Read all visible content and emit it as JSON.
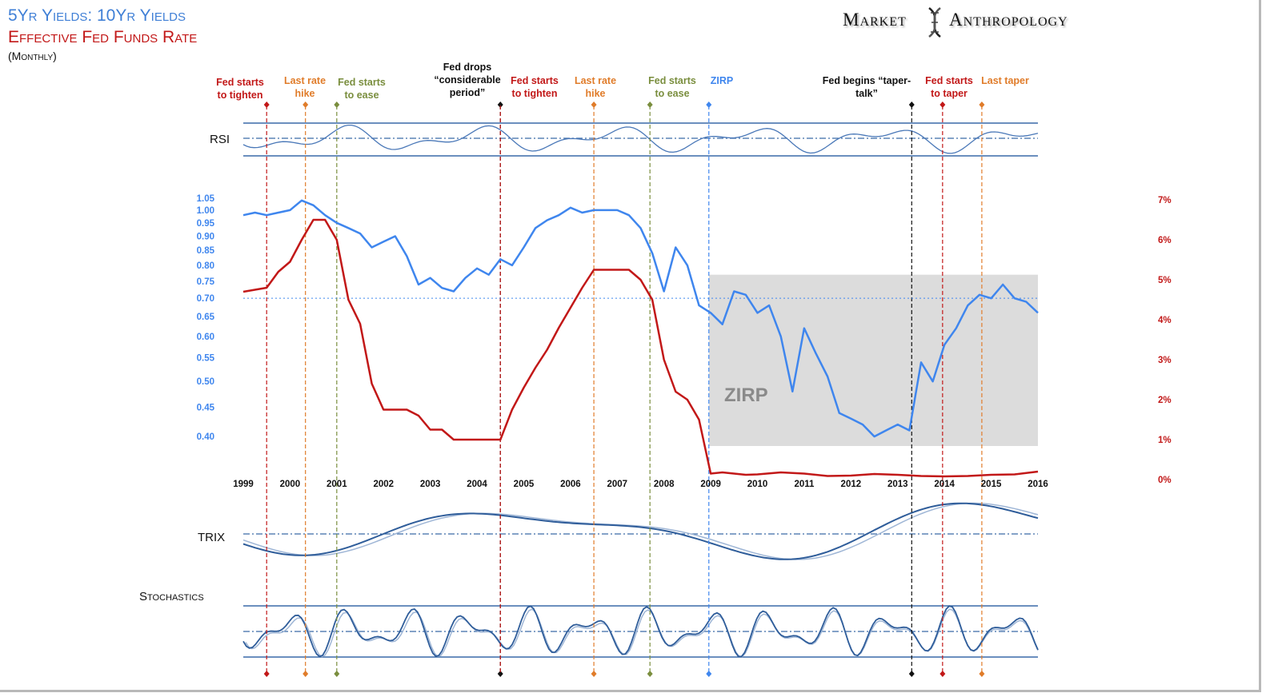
{
  "header": {
    "title1": "5Yr Yields: 10Yr Yields",
    "title2": "Effective Fed Funds Rate",
    "subtitle": "(Monthly)",
    "brand_left": "Market",
    "brand_right": "Anthropology"
  },
  "colors": {
    "ratio": "#3f86ee",
    "fed": "#c21818",
    "indicator": "#3a6aa8",
    "indicator_light": "#9fb6d6",
    "zirp_box": "#dcdcdc",
    "left_axis": "#3f86ee",
    "right_axis": "#c21818"
  },
  "panels": {
    "rsi_label": "RSI",
    "trix_label": "TRIX",
    "stoch_label": "Stochastics"
  },
  "zirp_box_label": "ZIRP",
  "events": [
    {
      "date": 1999.5,
      "label": [
        "Fed starts",
        "to tighten"
      ],
      "color": "#c21818"
    },
    {
      "date": 2000.33,
      "label": [
        "Last rate",
        "hike"
      ],
      "color": "#e07c2a"
    },
    {
      "date": 2001.0,
      "label": [
        "Fed starts",
        "to ease"
      ],
      "color": "#7a8e3e"
    },
    {
      "date": 2004.5,
      "label": [
        "Fed drops",
        "“considerable",
        "period”"
      ],
      "color": "#111111"
    },
    {
      "date": 2004.5,
      "label": [
        "Fed starts",
        "to tighten"
      ],
      "color": "#c21818"
    },
    {
      "date": 2006.5,
      "label": [
        "Last rate",
        "hike"
      ],
      "color": "#e07c2a"
    },
    {
      "date": 2007.7,
      "label": [
        "Fed starts",
        "to ease"
      ],
      "color": "#7a8e3e"
    },
    {
      "date": 2008.96,
      "label": [
        "ZIRP"
      ],
      "color": "#3f86ee"
    },
    {
      "date": 2013.3,
      "label": [
        "Fed begins “taper-",
        "talk”"
      ],
      "color": "#111111"
    },
    {
      "date": 2013.96,
      "label": [
        "Fed starts",
        "to taper"
      ],
      "color": "#c21818"
    },
    {
      "date": 2014.8,
      "label": [
        "Last taper"
      ],
      "color": "#e07c2a"
    }
  ],
  "chart_data": {
    "type": "line",
    "title": "5Yr Yields: 10Yr Yields / Effective Fed Funds Rate (Monthly)",
    "x_ticks": [
      "1999",
      "2000",
      "2001",
      "2002",
      "2003",
      "2004",
      "2005",
      "2006",
      "2007",
      "2008",
      "2009",
      "2010",
      "2011",
      "2012",
      "2013",
      "2014",
      "2015",
      "2016"
    ],
    "left_axis": {
      "ticks": [
        "1.05",
        "1.00",
        "0.95",
        "0.90",
        "0.85",
        "0.80",
        "0.75",
        "0.70",
        "0.65",
        "0.60",
        "0.55",
        "0.50",
        "0.45",
        "0.40"
      ],
      "ylim": [
        0.38,
        1.07
      ],
      "scale": "log"
    },
    "right_axis": {
      "ticks": [
        "7%",
        "6%",
        "5%",
        "4%",
        "3%",
        "2%",
        "1%",
        "0%"
      ],
      "ylim": [
        0,
        7
      ]
    },
    "reference_line": 0.7,
    "zirp_box": {
      "x": [
        2008.96,
        2016.0
      ],
      "y": [
        0.385,
        0.77
      ]
    },
    "series": [
      {
        "name": "5Yr Yields: 10Yr Yields",
        "axis": "left",
        "x": [
          1999.0,
          1999.25,
          1999.5,
          1999.75,
          2000.0,
          2000.25,
          2000.5,
          2000.75,
          2001.0,
          2001.25,
          2001.5,
          2001.75,
          2002.0,
          2002.25,
          2002.5,
          2002.75,
          2003.0,
          2003.25,
          2003.5,
          2003.75,
          2004.0,
          2004.25,
          2004.5,
          2004.75,
          2005.0,
          2005.25,
          2005.5,
          2005.75,
          2006.0,
          2006.25,
          2006.5,
          2006.75,
          2007.0,
          2007.25,
          2007.5,
          2007.75,
          2008.0,
          2008.25,
          2008.5,
          2008.75,
          2009.0,
          2009.25,
          2009.5,
          2009.75,
          2010.0,
          2010.25,
          2010.5,
          2010.75,
          2011.0,
          2011.25,
          2011.5,
          2011.75,
          2012.0,
          2012.25,
          2012.5,
          2012.75,
          2013.0,
          2013.25,
          2013.5,
          2013.75,
          2014.0,
          2014.25,
          2014.5,
          2014.75,
          2015.0,
          2015.25,
          2015.5,
          2015.75,
          2016.0
        ],
        "values": [
          0.98,
          0.99,
          0.98,
          0.99,
          1.0,
          1.04,
          1.02,
          0.98,
          0.95,
          0.93,
          0.91,
          0.86,
          0.88,
          0.9,
          0.83,
          0.74,
          0.76,
          0.73,
          0.72,
          0.76,
          0.79,
          0.77,
          0.82,
          0.8,
          0.86,
          0.93,
          0.96,
          0.98,
          1.01,
          0.99,
          1.0,
          1.0,
          1.0,
          0.98,
          0.93,
          0.84,
          0.72,
          0.86,
          0.8,
          0.68,
          0.66,
          0.63,
          0.72,
          0.71,
          0.66,
          0.68,
          0.6,
          0.48,
          0.62,
          0.56,
          0.51,
          0.44,
          0.43,
          0.42,
          0.4,
          0.41,
          0.42,
          0.41,
          0.54,
          0.5,
          0.58,
          0.62,
          0.68,
          0.71,
          0.7,
          0.74,
          0.7,
          0.69,
          0.66
        ]
      },
      {
        "name": "Effective Fed Funds Rate",
        "axis": "right",
        "x": [
          1999.0,
          1999.25,
          1999.5,
          1999.75,
          2000.0,
          2000.25,
          2000.5,
          2000.75,
          2001.0,
          2001.25,
          2001.5,
          2001.75,
          2002.0,
          2002.25,
          2002.5,
          2002.75,
          2003.0,
          2003.25,
          2003.5,
          2003.75,
          2004.0,
          2004.25,
          2004.5,
          2004.75,
          2005.0,
          2005.25,
          2005.5,
          2005.75,
          2006.0,
          2006.25,
          2006.5,
          2006.75,
          2007.0,
          2007.25,
          2007.5,
          2007.75,
          2008.0,
          2008.25,
          2008.5,
          2008.75,
          2009.0,
          2009.25,
          2009.5,
          2009.75,
          2010.0,
          2010.5,
          2011.0,
          2011.5,
          2012.0,
          2012.5,
          2013.0,
          2013.5,
          2014.0,
          2014.5,
          2015.0,
          2015.5,
          2016.0
        ],
        "values": [
          4.7,
          4.75,
          4.8,
          5.2,
          5.45,
          6.0,
          6.5,
          6.5,
          6.0,
          4.5,
          3.9,
          2.4,
          1.75,
          1.75,
          1.75,
          1.6,
          1.25,
          1.25,
          1.0,
          1.0,
          1.0,
          1.0,
          1.0,
          1.75,
          2.3,
          2.8,
          3.25,
          3.8,
          4.3,
          4.8,
          5.25,
          5.25,
          5.25,
          5.25,
          5.0,
          4.5,
          3.0,
          2.2,
          2.0,
          1.5,
          0.15,
          0.18,
          0.15,
          0.12,
          0.13,
          0.18,
          0.15,
          0.09,
          0.1,
          0.14,
          0.12,
          0.09,
          0.08,
          0.09,
          0.12,
          0.13,
          0.2
        ]
      }
    ]
  }
}
